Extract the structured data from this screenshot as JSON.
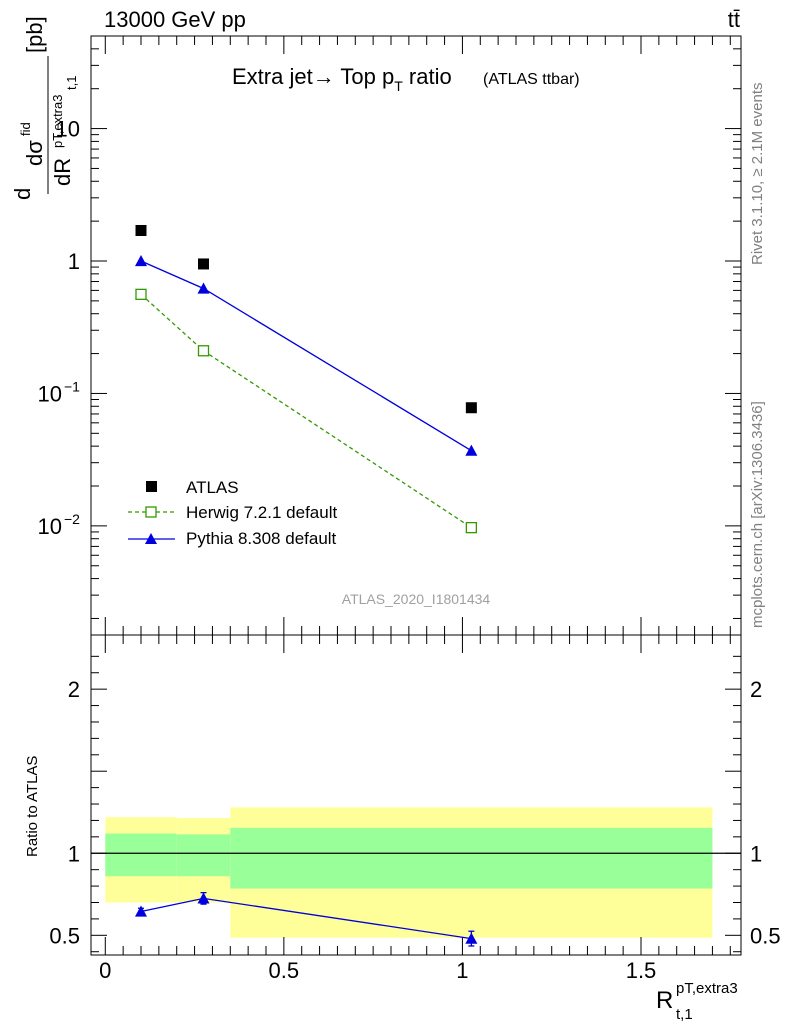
{
  "header": {
    "energy_label": "13000 GeV pp",
    "process_label": "tt̄"
  },
  "side": {
    "rivet_label": "Rivet 3.1.10, ≥ 2.1M events",
    "mcplots_label": "mcplots.cern.ch [arXiv:1306.3436]"
  },
  "plot_title": {
    "main": "Extra jet→ Top p",
    "sub": "T",
    "suffix": " ratio",
    "small": "(ATLAS ttbar)"
  },
  "analysis_id": "ATLAS_2020_I1801434",
  "y_axis_label": {
    "num": "dσ",
    "sup": "fid",
    "den": "dR",
    "sub": "t,1",
    "sub2": "pT,extra3",
    "unit": "[pb]"
  },
  "x_axis_label": {
    "main": "R",
    "sup": "pT,extra3",
    "sub": "t,1"
  },
  "ratio_axis_label": "Ratio to ATLAS",
  "colors": {
    "atlas": "#000000",
    "herwig": "#339900",
    "pythia": "#0000dd",
    "band_inner": "#99ff99",
    "band_outer": "#ffff99"
  },
  "chart_data": [
    {
      "type": "line",
      "panel": "main",
      "y_scale": "log",
      "xlim": [
        -0.04,
        1.78
      ],
      "ylim": [
        0.0015,
        50
      ],
      "y_ticks": [
        {
          "value": 0.01,
          "label": "10",
          "exp": "−2"
        },
        {
          "value": 0.1,
          "label": "10",
          "exp": "−1"
        },
        {
          "value": 1,
          "label": "1",
          "exp": ""
        },
        {
          "value": 10,
          "label": "10",
          "exp": ""
        }
      ],
      "series": [
        {
          "name": "ATLAS",
          "marker": "square-filled",
          "x": [
            0.1,
            0.275,
            1.025
          ],
          "y": [
            1.7,
            0.95,
            0.078
          ]
        },
        {
          "name": "Herwig 7.2.1 default",
          "marker": "square-open",
          "line": "dashed",
          "x": [
            0.1,
            0.275,
            1.025
          ],
          "y": [
            0.56,
            0.21,
            0.0097
          ]
        },
        {
          "name": "Pythia 8.308 default",
          "marker": "triangle-filled",
          "line": "solid",
          "x": [
            0.1,
            0.275,
            1.025
          ],
          "y": [
            1.0,
            0.62,
            0.037
          ]
        }
      ],
      "legend_position": "bottom-left"
    },
    {
      "type": "line",
      "panel": "ratio",
      "xlim": [
        -0.04,
        1.78
      ],
      "ylim": [
        0.38,
        2.33
      ],
      "y_ticks": [
        {
          "value": 0.5,
          "label": "0.5"
        },
        {
          "value": 1,
          "label": "1"
        },
        {
          "value": 2,
          "label": "2"
        }
      ],
      "x_ticks": [
        {
          "value": 0,
          "label": "0"
        },
        {
          "value": 0.5,
          "label": "0.5"
        },
        {
          "value": 1,
          "label": "1"
        },
        {
          "value": 1.5,
          "label": "1.5"
        }
      ],
      "bands": [
        {
          "x_from": 0.0,
          "x_to": 0.2,
          "inner": [
            0.86,
            1.12
          ],
          "outer": [
            0.7,
            1.22
          ]
        },
        {
          "x_from": 0.2,
          "x_to": 0.35,
          "inner": [
            0.86,
            1.115
          ],
          "outer": [
            0.7,
            1.215
          ]
        },
        {
          "x_from": 0.35,
          "x_to": 1.7,
          "inner": [
            0.785,
            1.155
          ],
          "outer": [
            0.485,
            1.28
          ]
        }
      ],
      "series": [
        {
          "name": "Pythia 8.308 default",
          "marker": "triangle-filled",
          "x": [
            0.1,
            0.275,
            1.025
          ],
          "y": [
            0.645,
            0.725,
            0.48
          ],
          "err": [
            0.02,
            0.035,
            0.045
          ]
        }
      ]
    }
  ]
}
